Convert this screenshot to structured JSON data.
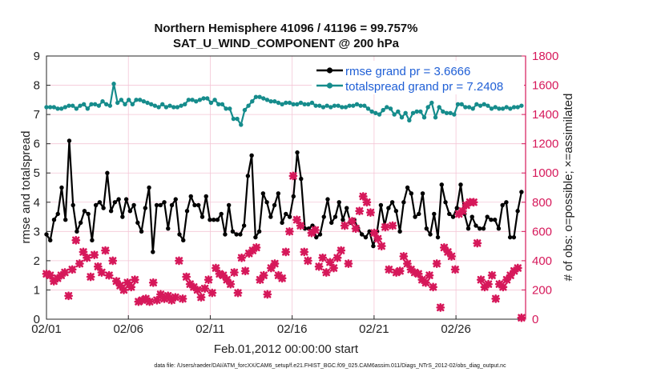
{
  "colors": {
    "rmse": "#000000",
    "spread": "#168c8c",
    "obs": "#d6185a",
    "legend_text": "#1f5fd6",
    "grid": "#f4c6d6"
  },
  "chart_data": {
    "type": "line",
    "title": "Northern Hemisphere 41096 / 41196 = 99.757%",
    "subtitle": "SAT_U_WIND_COMPONENT @ 200 hPa",
    "xlabel": "Feb.01,2012 00:00:00 start",
    "ylabel": "rmse and totalspread",
    "ylabel_right": "# of obs: o=possible; ×=assimilated",
    "x_tick_labels": [
      "02/01",
      "02/06",
      "02/11",
      "02/16",
      "02/21",
      "02/26"
    ],
    "x_tick_days": [
      0,
      5,
      10,
      15,
      20,
      25
    ],
    "xlim": [
      0,
      29.25
    ],
    "ylim": [
      0,
      9
    ],
    "y_ticks": [
      "0",
      "1",
      "2",
      "3",
      "4",
      "5",
      "6",
      "7",
      "8",
      "9"
    ],
    "ylim_right": [
      0,
      1800
    ],
    "y_ticks_right": [
      "0",
      "200",
      "400",
      "600",
      "800",
      "1000",
      "1200",
      "1400",
      "1600",
      "1800"
    ],
    "legend": [
      {
        "label": "rmse grand pr = 3.6666",
        "series": "rmse"
      },
      {
        "label": "totalspread grand pr = 7.2408",
        "series": "totalspread"
      }
    ],
    "legend_position": "top-right",
    "series": [
      {
        "name": "rmse",
        "axis": "left",
        "marker": "circle",
        "values": [
          2.9,
          2.7,
          3.4,
          3.6,
          4.5,
          3.4,
          6.1,
          3.9,
          3.0,
          3.3,
          3.7,
          3.6,
          2.7,
          3.9,
          4.0,
          3.8,
          5.0,
          3.7,
          4.0,
          4.1,
          3.5,
          4.1,
          3.7,
          3.9,
          3.3,
          3.0,
          3.8,
          4.5,
          2.3,
          3.9,
          3.9,
          4.0,
          3.1,
          3.9,
          4.1,
          2.9,
          2.7,
          3.7,
          4.2,
          3.9,
          3.9,
          3.5,
          4.2,
          3.4,
          3.4,
          3.4,
          3.6,
          2.9,
          3.9,
          3.0,
          2.9,
          2.9,
          3.2,
          4.9,
          5.6,
          2.8,
          3.0,
          4.3,
          4.0,
          3.5,
          3.9,
          4.3,
          3.3,
          3.6,
          3.5,
          4.2,
          5.7,
          4.8,
          3.1,
          3.1,
          3.2,
          2.8,
          2.9,
          3.5,
          4.1,
          3.3,
          3.5,
          4.0,
          3.4,
          3.8,
          3.3,
          3.4,
          3.1,
          2.9,
          2.8,
          3.0,
          2.5,
          3.0,
          3.9,
          3.2,
          3.8,
          4.0,
          3.7,
          3.0,
          4.0,
          4.5,
          4.3,
          3.5,
          3.6,
          4.3,
          3.1,
          2.9,
          3.6,
          2.8,
          4.6,
          4.0,
          3.6,
          3.5,
          3.8,
          4.6,
          3.6,
          3.1,
          3.5,
          3.2,
          3.1,
          3.1,
          3.5,
          3.4,
          3.4,
          3.1,
          3.9,
          4.0,
          2.8,
          2.8,
          3.7,
          4.35
        ]
      },
      {
        "name": "totalspread",
        "axis": "left",
        "marker": "circle",
        "values": [
          7.25,
          7.25,
          7.25,
          7.2,
          7.2,
          7.25,
          7.3,
          7.3,
          7.2,
          7.3,
          7.35,
          7.2,
          7.35,
          7.35,
          7.3,
          7.45,
          7.35,
          7.3,
          8.05,
          7.4,
          7.5,
          7.35,
          7.5,
          7.35,
          7.5,
          7.5,
          7.45,
          7.4,
          7.35,
          7.3,
          7.25,
          7.35,
          7.25,
          7.3,
          7.25,
          7.25,
          7.3,
          7.35,
          7.5,
          7.5,
          7.45,
          7.5,
          7.55,
          7.55,
          7.4,
          7.5,
          7.35,
          7.35,
          7.2,
          7.2,
          6.85,
          6.85,
          6.65,
          7.15,
          7.3,
          7.45,
          7.6,
          7.6,
          7.55,
          7.5,
          7.45,
          7.45,
          7.4,
          7.35,
          7.4,
          7.4,
          7.35,
          7.35,
          7.4,
          7.35,
          7.35,
          7.4,
          7.3,
          7.3,
          7.25,
          7.3,
          7.25,
          7.3,
          7.3,
          7.25,
          7.25,
          7.3,
          7.3,
          7.35,
          7.3,
          7.3,
          7.2,
          7.1,
          7.05,
          7.0,
          7.15,
          7.25,
          7.2,
          7.0,
          7.1,
          6.9,
          7.05,
          6.8,
          7.05,
          7.1,
          7.1,
          6.9,
          7.25,
          7.4,
          6.9,
          7.25,
          7.1,
          7.05,
          7.05,
          7.0,
          7.35,
          7.35,
          7.25,
          7.25,
          7.2,
          7.35,
          7.3,
          7.35,
          7.3,
          7.2,
          7.25,
          7.2,
          7.2,
          7.25,
          7.2,
          7.25,
          7.25,
          7.3
        ]
      },
      {
        "name": "obs_assimilated",
        "axis": "right",
        "marker": "x",
        "values": [
          310,
          300,
          260,
          280,
          300,
          320,
          160,
          340,
          540,
          380,
          460,
          420,
          290,
          440,
          360,
          320,
          470,
          300,
          400,
          260,
          230,
          200,
          250,
          220,
          270,
          120,
          130,
          140,
          120,
          250,
          130,
          170,
          140,
          160,
          130,
          150,
          400,
          140,
          290,
          240,
          220,
          200,
          150,
          210,
          270,
          180,
          350,
          310,
          300,
          270,
          240,
          320,
          180,
          420,
          330,
          450,
          470,
          490,
          270,
          300,
          170,
          350,
          380,
          300,
          280,
          460,
          600,
          980,
          680,
          640,
          460,
          400,
          590,
          610,
          360,
          420,
          320,
          390,
          350,
          420,
          470,
          640,
          380,
          670,
          620,
          740,
          840,
          800,
          730,
          590,
          550,
          500,
          630,
          340,
          640,
          320,
          330,
          430,
          380,
          340,
          320,
          310,
          270,
          250,
          300,
          220,
          380,
          80,
          490,
          460,
          430,
          340,
          720,
          740,
          780,
          800,
          800,
          520,
          270,
          220,
          240,
          300,
          140,
          240,
          220,
          270,
          300,
          330,
          350,
          10
        ]
      },
      {
        "name": "obs_possible",
        "axis": "right",
        "marker": "o",
        "values": []
      }
    ]
  },
  "footer": "data file: /Users/raeder/DAI/ATM_forcXX/CAM6_setup/f.e21.FHIST_BGC.f09_025.CAM6assim.011/Diags_NTrS_2012-02/obs_diag_output.nc"
}
